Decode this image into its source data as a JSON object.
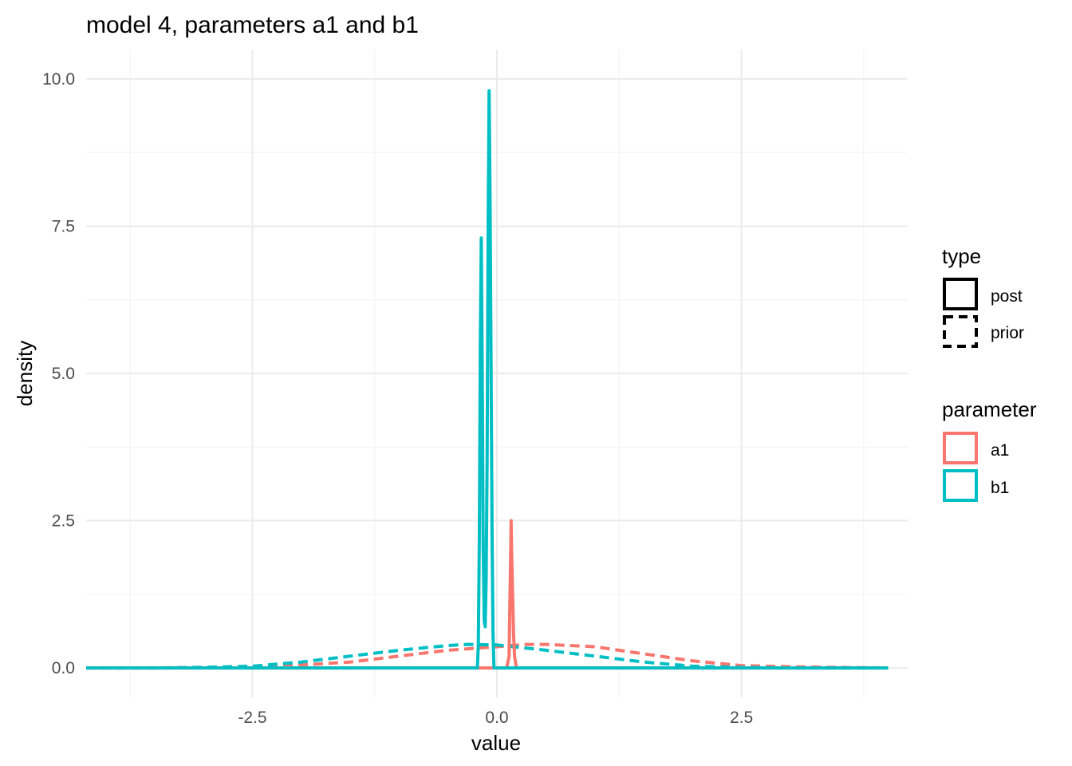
{
  "chart_data": {
    "type": "line",
    "title": "model 4, parameters a1 and b1",
    "xlabel": "value",
    "ylabel": "density",
    "xlim": [
      -4.2,
      4.2
    ],
    "ylim": [
      -0.5,
      10.5
    ],
    "x_ticks": [
      -2.5,
      0.0,
      2.5
    ],
    "x_tick_labels": [
      "-2.5",
      "0.0",
      "2.5"
    ],
    "y_ticks": [
      0,
      2.5,
      5,
      7.5,
      10
    ],
    "y_tick_labels": [
      "0.0",
      "2.5",
      "5.0",
      "7.5",
      "10.0"
    ],
    "grid": true,
    "legend_placement": "right",
    "legends": [
      {
        "title": "type",
        "entries": [
          {
            "label": "post",
            "linetype": "solid"
          },
          {
            "label": "prior",
            "linetype": "dashed"
          }
        ]
      },
      {
        "title": "parameter",
        "entries": [
          {
            "label": "a1",
            "color": "#F8766D"
          },
          {
            "label": "b1",
            "color": "#00BFC4"
          }
        ]
      }
    ],
    "series": [
      {
        "parameter": "a1",
        "type": "prior",
        "color": "#F8766D",
        "linetype": "dashed",
        "x": [
          -4.2,
          -3.5,
          -3.0,
          -2.5,
          -2.0,
          -1.5,
          -1.0,
          -0.5,
          0.0,
          0.3,
          0.5,
          1.0,
          1.5,
          2.0,
          2.5,
          3.0,
          3.5,
          4.0
        ],
        "y": [
          0.0,
          0.0,
          0.01,
          0.02,
          0.05,
          0.1,
          0.2,
          0.3,
          0.36,
          0.4,
          0.4,
          0.36,
          0.24,
          0.12,
          0.04,
          0.02,
          0.01,
          0.0
        ]
      },
      {
        "parameter": "b1",
        "type": "prior",
        "color": "#00BFC4",
        "linetype": "dashed",
        "x": [
          -4.2,
          -3.5,
          -3.0,
          -2.5,
          -2.0,
          -1.5,
          -1.0,
          -0.5,
          -0.3,
          0.0,
          0.5,
          1.0,
          1.5,
          2.0,
          2.5,
          3.0,
          3.5,
          4.0
        ],
        "y": [
          0.0,
          0.0,
          0.01,
          0.03,
          0.1,
          0.2,
          0.3,
          0.38,
          0.4,
          0.39,
          0.3,
          0.2,
          0.1,
          0.03,
          0.01,
          0.0,
          0.0,
          0.0
        ]
      },
      {
        "parameter": "a1",
        "type": "post",
        "color": "#F8766D",
        "linetype": "solid",
        "x": [
          -4.2,
          0.1,
          0.125,
          0.13,
          0.14,
          0.145,
          0.15,
          0.16,
          0.17,
          0.18,
          0.2,
          4.0
        ],
        "y": [
          0.0,
          0.0,
          0.2,
          0.8,
          1.9,
          2.5,
          2.0,
          1.3,
          0.6,
          0.2,
          0.0,
          0.0
        ]
      },
      {
        "parameter": "b1",
        "type": "post",
        "color": "#00BFC4",
        "linetype": "solid",
        "x": [
          -4.2,
          -0.2,
          -0.19,
          -0.18,
          -0.17,
          -0.16,
          -0.15,
          -0.14,
          -0.13,
          -0.12,
          -0.11,
          -0.1,
          -0.09,
          -0.08,
          -0.07,
          -0.06,
          -0.05,
          -0.04,
          -0.03,
          4.0
        ],
        "y": [
          0.0,
          0.0,
          0.4,
          2.1,
          5.5,
          7.3,
          5.0,
          2.0,
          0.8,
          0.7,
          1.5,
          3.5,
          7.5,
          9.8,
          8.0,
          5.3,
          2.3,
          0.6,
          0.0,
          0.0
        ]
      }
    ]
  }
}
